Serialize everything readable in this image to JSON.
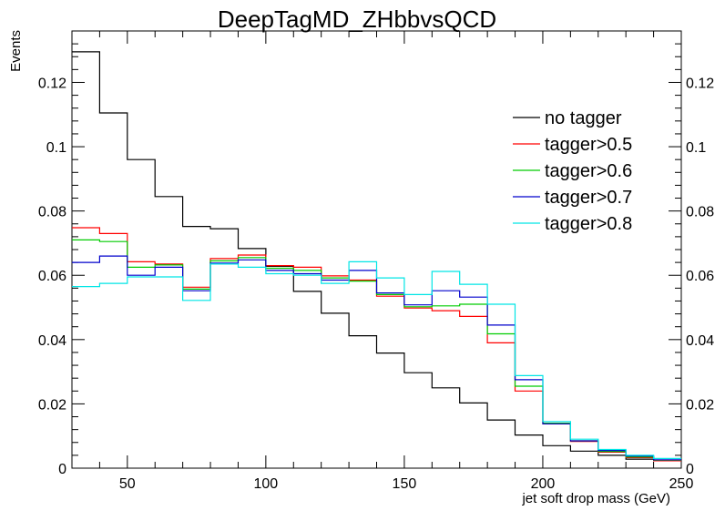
{
  "chart_data": {
    "type": "line",
    "title": "DeepTagMD_ZHbbvsQCD",
    "xlabel": "jet soft drop mass (GeV)",
    "ylabel": "Events",
    "xlim": [
      30,
      250
    ],
    "ylim": [
      0,
      0.136
    ],
    "x_ticks": [
      50,
      100,
      150,
      200,
      250
    ],
    "y_ticks": [
      0,
      0.02,
      0.04,
      0.06,
      0.08,
      0.1,
      0.12
    ],
    "y_tick_labels": [
      "0",
      "0.02",
      "0.04",
      "0.06",
      "0.08",
      "0.1",
      "0.12"
    ],
    "right_axis_ticks": true,
    "legend_position": "right",
    "bin_edges": [
      30,
      40,
      50,
      60,
      70,
      80,
      90,
      100,
      110,
      120,
      130,
      140,
      150,
      160,
      170,
      180,
      190,
      200,
      210,
      220,
      230,
      240,
      250
    ],
    "series": [
      {
        "name": "no tagger",
        "color": "#000000",
        "values": [
          0.1295,
          0.1105,
          0.096,
          0.0845,
          0.0752,
          0.0745,
          0.0683,
          0.0628,
          0.055,
          0.0482,
          0.0412,
          0.0358,
          0.0297,
          0.025,
          0.0203,
          0.015,
          0.0103,
          0.007,
          0.0053,
          0.004,
          0.0028,
          0.0023
        ]
      },
      {
        "name": "tagger>0.5",
        "color": "#ff0000",
        "values": [
          0.0748,
          0.073,
          0.0642,
          0.0635,
          0.0563,
          0.0652,
          0.0663,
          0.063,
          0.0625,
          0.0598,
          0.0585,
          0.0535,
          0.0498,
          0.049,
          0.0472,
          0.039,
          0.024,
          0.0138,
          0.0083,
          0.005,
          0.0033,
          0.0023
        ]
      },
      {
        "name": "tagger>0.6",
        "color": "#00cc00",
        "values": [
          0.071,
          0.0705,
          0.0625,
          0.0632,
          0.0557,
          0.0645,
          0.0655,
          0.0622,
          0.0615,
          0.0592,
          0.0582,
          0.054,
          0.0502,
          0.0505,
          0.051,
          0.0418,
          0.0255,
          0.014,
          0.0085,
          0.0052,
          0.0035,
          0.0025
        ]
      },
      {
        "name": "tagger>0.7",
        "color": "#0000cc",
        "values": [
          0.064,
          0.066,
          0.06,
          0.0625,
          0.0552,
          0.0638,
          0.0648,
          0.0615,
          0.0605,
          0.0585,
          0.0615,
          0.0545,
          0.0508,
          0.0552,
          0.0532,
          0.0445,
          0.0275,
          0.0138,
          0.0085,
          0.0055,
          0.0038,
          0.0026
        ]
      },
      {
        "name": "tagger>0.8",
        "color": "#00e5e5",
        "values": [
          0.0565,
          0.0575,
          0.0595,
          0.0595,
          0.0522,
          0.0635,
          0.0625,
          0.0605,
          0.06,
          0.0575,
          0.0642,
          0.0592,
          0.054,
          0.0612,
          0.0572,
          0.051,
          0.0288,
          0.0145,
          0.009,
          0.0058,
          0.004,
          0.003
        ]
      }
    ]
  }
}
